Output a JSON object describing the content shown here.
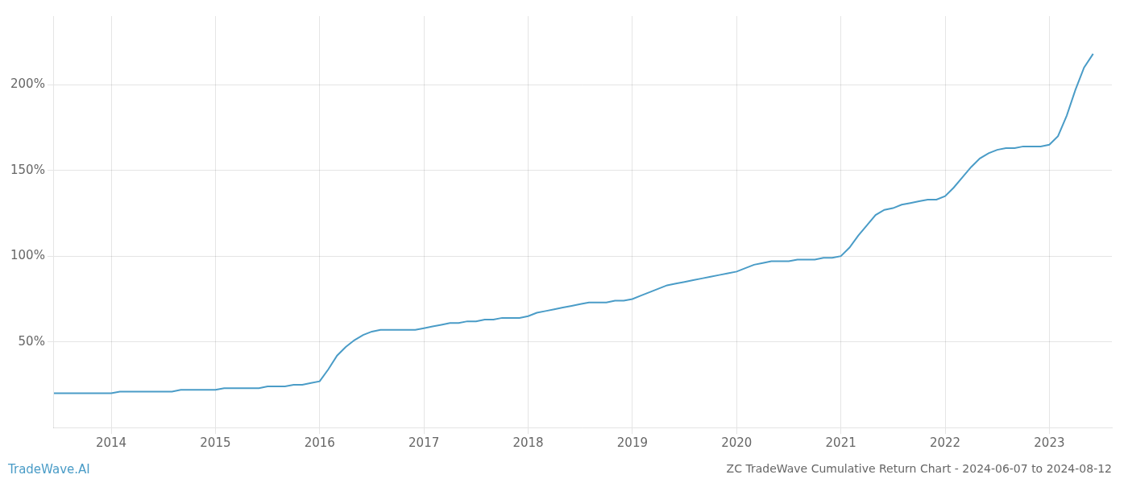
{
  "chart_data": {
    "type": "line",
    "title": "ZC TradeWave Cumulative Return Chart - 2024-06-07 to 2024-08-12",
    "annotations": [
      "TradeWave.AI"
    ],
    "color": "#4a9cc7",
    "x": [
      2013.45,
      2014.0,
      2014.083,
      2014.167,
      2014.25,
      2014.333,
      2014.417,
      2014.5,
      2014.583,
      2014.667,
      2014.75,
      2014.833,
      2014.917,
      2015.0,
      2015.083,
      2015.167,
      2015.25,
      2015.333,
      2015.417,
      2015.5,
      2015.583,
      2015.667,
      2015.75,
      2015.833,
      2015.917,
      2016.0,
      2016.083,
      2016.167,
      2016.25,
      2016.333,
      2016.417,
      2016.5,
      2016.583,
      2016.667,
      2016.75,
      2016.833,
      2016.917,
      2017.0,
      2017.083,
      2017.167,
      2017.25,
      2017.333,
      2017.417,
      2017.5,
      2017.583,
      2017.667,
      2017.75,
      2017.833,
      2017.917,
      2018.0,
      2018.083,
      2018.167,
      2018.25,
      2018.333,
      2018.417,
      2018.5,
      2018.583,
      2018.667,
      2018.75,
      2018.833,
      2018.917,
      2019.0,
      2019.083,
      2019.167,
      2019.25,
      2019.333,
      2019.417,
      2019.5,
      2019.583,
      2019.667,
      2019.75,
      2019.833,
      2019.917,
      2020.0,
      2020.083,
      2020.167,
      2020.25,
      2020.333,
      2020.417,
      2020.5,
      2020.583,
      2020.667,
      2020.75,
      2020.833,
      2020.917,
      2021.0,
      2021.083,
      2021.167,
      2021.25,
      2021.333,
      2021.417,
      2021.5,
      2021.583,
      2021.667,
      2021.75,
      2021.833,
      2021.917,
      2022.0,
      2022.083,
      2022.167,
      2022.25,
      2022.333,
      2022.417,
      2022.5,
      2022.583,
      2022.667,
      2022.75,
      2022.833,
      2022.917,
      2023.0,
      2023.083,
      2023.167,
      2023.25,
      2023.333,
      2023.42
    ],
    "values": [
      20,
      20,
      21,
      21,
      21,
      21,
      21,
      21,
      21,
      22,
      22,
      22,
      22,
      22,
      23,
      23,
      23,
      23,
      23,
      24,
      24,
      24,
      25,
      25,
      26,
      27,
      34,
      42,
      47,
      51,
      54,
      56,
      57,
      57,
      57,
      57,
      57,
      58,
      59,
      60,
      61,
      61,
      62,
      62,
      63,
      63,
      64,
      64,
      64,
      65,
      67,
      68,
      69,
      70,
      71,
      72,
      73,
      73,
      73,
      74,
      74,
      75,
      77,
      79,
      81,
      83,
      84,
      85,
      86,
      87,
      88,
      89,
      90,
      91,
      93,
      95,
      96,
      97,
      97,
      97,
      98,
      98,
      98,
      99,
      99,
      100,
      105,
      112,
      118,
      124,
      127,
      128,
      130,
      131,
      132,
      133,
      133,
      135,
      140,
      146,
      152,
      157,
      160,
      162,
      163,
      163,
      164,
      164,
      164,
      165,
      170,
      182,
      197,
      210,
      218
    ],
    "xlim": [
      2013.45,
      2023.6
    ],
    "xticks": [
      2014,
      2015,
      2016,
      2017,
      2018,
      2019,
      2020,
      2021,
      2022,
      2023
    ],
    "ylim": [
      0,
      240
    ],
    "yticks": [
      {
        "value": 50,
        "label": "50%"
      },
      {
        "value": 100,
        "label": "100%"
      },
      {
        "value": 150,
        "label": "150%"
      },
      {
        "value": 200,
        "label": "200%"
      }
    ],
    "grid": true
  }
}
